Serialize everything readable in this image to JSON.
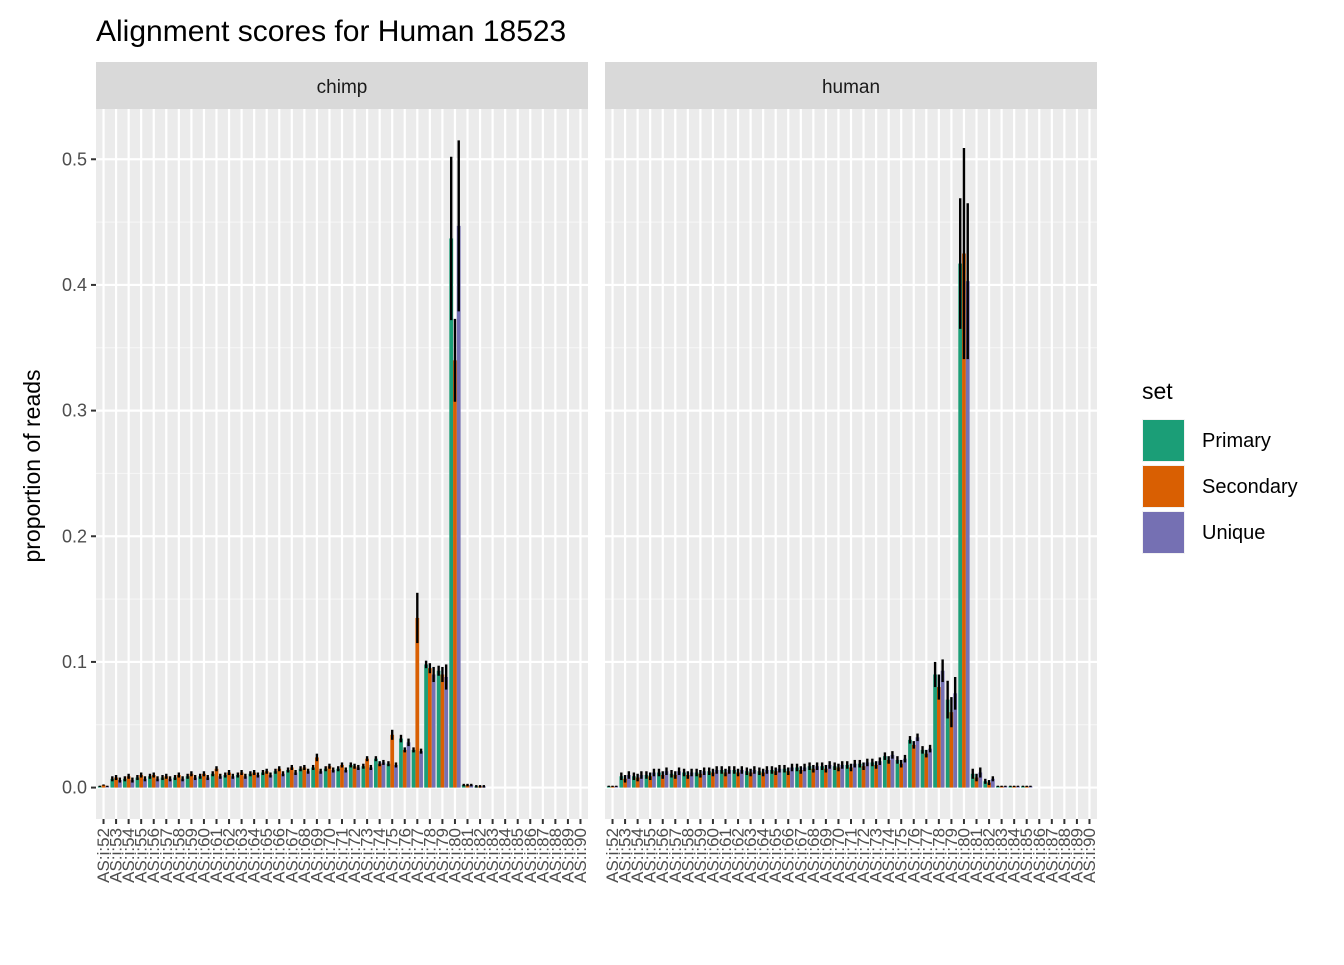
{
  "chart_data": {
    "type": "bar",
    "title": "Alignment scores for Human 18523",
    "xlabel": "",
    "ylabel": "proportion of reads",
    "ylim": [
      -0.025,
      0.54
    ],
    "y_ticks": [
      0.0,
      0.1,
      0.2,
      0.3,
      0.4,
      0.5
    ],
    "y_tick_labels": [
      "0.0",
      "0.1",
      "0.2",
      "0.3",
      "0.4",
      "0.5"
    ],
    "grid": true,
    "legend": {
      "title": "set",
      "position": "right"
    },
    "categories": [
      "AS:i:52",
      "AS:i:53",
      "AS:i:54",
      "AS:i:55",
      "AS:i:56",
      "AS:i:57",
      "AS:i:58",
      "AS:i:59",
      "AS:i:60",
      "AS:i:61",
      "AS:i:62",
      "AS:i:63",
      "AS:i:64",
      "AS:i:65",
      "AS:i:66",
      "AS:i:67",
      "AS:i:68",
      "AS:i:69",
      "AS:i:70",
      "AS:i:71",
      "AS:i:72",
      "AS:i:73",
      "AS:i:74",
      "AS:i:75",
      "AS:i:76",
      "AS:i:77",
      "AS:i:78",
      "AS:i:79",
      "AS:i:80",
      "AS:i:81",
      "AS:i:82",
      "AS:i:83",
      "AS:i:84",
      "AS:i:85",
      "AS:i:86",
      "AS:i:87",
      "AS:i:88",
      "AS:i:89",
      "AS:i:90"
    ],
    "panels": [
      {
        "label": "chimp",
        "series": [
          {
            "name": "Primary",
            "color": "#1B9E77",
            "values": [
              0.001,
              0.007,
              0.007,
              0.008,
              0.009,
              0.008,
              0.008,
              0.009,
              0.009,
              0.011,
              0.01,
              0.01,
              0.011,
              0.012,
              0.013,
              0.014,
              0.015,
              0.016,
              0.015,
              0.015,
              0.018,
              0.017,
              0.023,
              0.019,
              0.039,
              0.03,
              0.098,
              0.093,
              0.437,
              0.002,
              0.001,
              0.0,
              0,
              0,
              0,
              0,
              0,
              0,
              0
            ],
            "errors": [
              0.0005,
              0.002,
              0.002,
              0.002,
              0.002,
              0.002,
              0.002,
              0.002,
              0.002,
              0.002,
              0.002,
              0.002,
              0.002,
              0.002,
              0.002,
              0.002,
              0.002,
              0.002,
              0.002,
              0.002,
              0.002,
              0.002,
              0.002,
              0.002,
              0.003,
              0.002,
              0.003,
              0.004,
              0.065,
              0.001,
              0.001,
              0.0005,
              0,
              0,
              0,
              0,
              0,
              0,
              0
            ]
          },
          {
            "name": "Secondary",
            "color": "#D95F02",
            "values": [
              0.002,
              0.008,
              0.009,
              0.01,
              0.01,
              0.009,
              0.01,
              0.011,
              0.011,
              0.015,
              0.012,
              0.012,
              0.012,
              0.013,
              0.015,
              0.016,
              0.016,
              0.024,
              0.017,
              0.018,
              0.017,
              0.023,
              0.019,
              0.042,
              0.03,
              0.135,
              0.095,
              0.09,
              0.34,
              0.002,
              0.001,
              0.0,
              0,
              0,
              0,
              0,
              0,
              0,
              0
            ],
            "errors": [
              0.0005,
              0.002,
              0.002,
              0.002,
              0.002,
              0.002,
              0.002,
              0.002,
              0.002,
              0.002,
              0.002,
              0.002,
              0.002,
              0.002,
              0.002,
              0.002,
              0.002,
              0.003,
              0.002,
              0.002,
              0.002,
              0.002,
              0.002,
              0.004,
              0.002,
              0.02,
              0.004,
              0.006,
              0.033,
              0.001,
              0.001,
              0.0005,
              0,
              0,
              0,
              0,
              0,
              0,
              0
            ]
          },
          {
            "name": "Unique",
            "color": "#7570B3",
            "values": [
              0.001,
              0.006,
              0.006,
              0.007,
              0.007,
              0.007,
              0.007,
              0.008,
              0.008,
              0.009,
              0.009,
              0.009,
              0.01,
              0.01,
              0.011,
              0.012,
              0.013,
              0.013,
              0.014,
              0.014,
              0.016,
              0.016,
              0.02,
              0.018,
              0.036,
              0.029,
              0.09,
              0.088,
              0.447,
              0.002,
              0.001,
              0.0,
              0,
              0,
              0,
              0,
              0,
              0,
              0
            ],
            "errors": [
              0.0005,
              0.002,
              0.002,
              0.002,
              0.002,
              0.002,
              0.002,
              0.002,
              0.002,
              0.002,
              0.002,
              0.002,
              0.002,
              0.002,
              0.002,
              0.002,
              0.002,
              0.002,
              0.002,
              0.002,
              0.002,
              0.002,
              0.002,
              0.002,
              0.003,
              0.002,
              0.006,
              0.01,
              0.068,
              0.001,
              0.001,
              0.0005,
              0,
              0,
              0,
              0,
              0,
              0,
              0
            ]
          }
        ]
      },
      {
        "label": "human",
        "series": [
          {
            "name": "Primary",
            "color": "#1B9E77",
            "values": [
              0.001,
              0.009,
              0.009,
              0.01,
              0.012,
              0.011,
              0.012,
              0.012,
              0.013,
              0.014,
              0.014,
              0.013,
              0.013,
              0.014,
              0.015,
              0.016,
              0.017,
              0.017,
              0.017,
              0.018,
              0.019,
              0.02,
              0.025,
              0.022,
              0.038,
              0.03,
              0.09,
              0.07,
              0.417,
              0.011,
              0.005,
              0.001,
              0.001,
              0.001,
              0,
              0,
              0,
              0,
              0
            ],
            "errors": [
              0.0005,
              0.003,
              0.003,
              0.003,
              0.003,
              0.003,
              0.003,
              0.003,
              0.003,
              0.003,
              0.003,
              0.003,
              0.003,
              0.003,
              0.003,
              0.003,
              0.003,
              0.003,
              0.003,
              0.003,
              0.003,
              0.003,
              0.003,
              0.003,
              0.003,
              0.003,
              0.01,
              0.015,
              0.052,
              0.004,
              0.002,
              0.0005,
              0.0005,
              0.0005,
              0,
              0,
              0,
              0,
              0
            ]
          },
          {
            "name": "Secondary",
            "color": "#D95F02",
            "values": [
              0.001,
              0.007,
              0.008,
              0.009,
              0.01,
              0.01,
              0.01,
              0.011,
              0.012,
              0.012,
              0.012,
              0.012,
              0.012,
              0.013,
              0.013,
              0.014,
              0.015,
              0.015,
              0.016,
              0.016,
              0.017,
              0.018,
              0.022,
              0.019,
              0.034,
              0.027,
              0.08,
              0.06,
              0.425,
              0.008,
              0.004,
              0.001,
              0.001,
              0.001,
              0,
              0,
              0,
              0,
              0
            ],
            "errors": [
              0.0005,
              0.003,
              0.003,
              0.003,
              0.003,
              0.003,
              0.003,
              0.003,
              0.003,
              0.003,
              0.003,
              0.003,
              0.003,
              0.003,
              0.003,
              0.003,
              0.003,
              0.003,
              0.003,
              0.003,
              0.003,
              0.003,
              0.003,
              0.003,
              0.003,
              0.003,
              0.01,
              0.012,
              0.084,
              0.003,
              0.002,
              0.0005,
              0.0005,
              0.0005,
              0,
              0,
              0,
              0,
              0
            ]
          },
          {
            "name": "Unique",
            "color": "#7570B3",
            "values": [
              0.001,
              0.01,
              0.01,
              0.012,
              0.013,
              0.013,
              0.012,
              0.013,
              0.014,
              0.014,
              0.014,
              0.014,
              0.014,
              0.015,
              0.016,
              0.016,
              0.017,
              0.018,
              0.018,
              0.019,
              0.02,
              0.021,
              0.026,
              0.023,
              0.04,
              0.031,
              0.093,
              0.075,
              0.403,
              0.012,
              0.007,
              0.001,
              0.001,
              0.001,
              0,
              0,
              0,
              0,
              0
            ],
            "errors": [
              0.0005,
              0.003,
              0.003,
              0.003,
              0.003,
              0.003,
              0.003,
              0.003,
              0.003,
              0.003,
              0.003,
              0.003,
              0.003,
              0.003,
              0.003,
              0.003,
              0.003,
              0.003,
              0.003,
              0.003,
              0.003,
              0.003,
              0.003,
              0.003,
              0.003,
              0.003,
              0.009,
              0.013,
              0.062,
              0.004,
              0.002,
              0.0005,
              0.0005,
              0.0005,
              0,
              0,
              0,
              0,
              0
            ]
          }
        ]
      }
    ]
  }
}
